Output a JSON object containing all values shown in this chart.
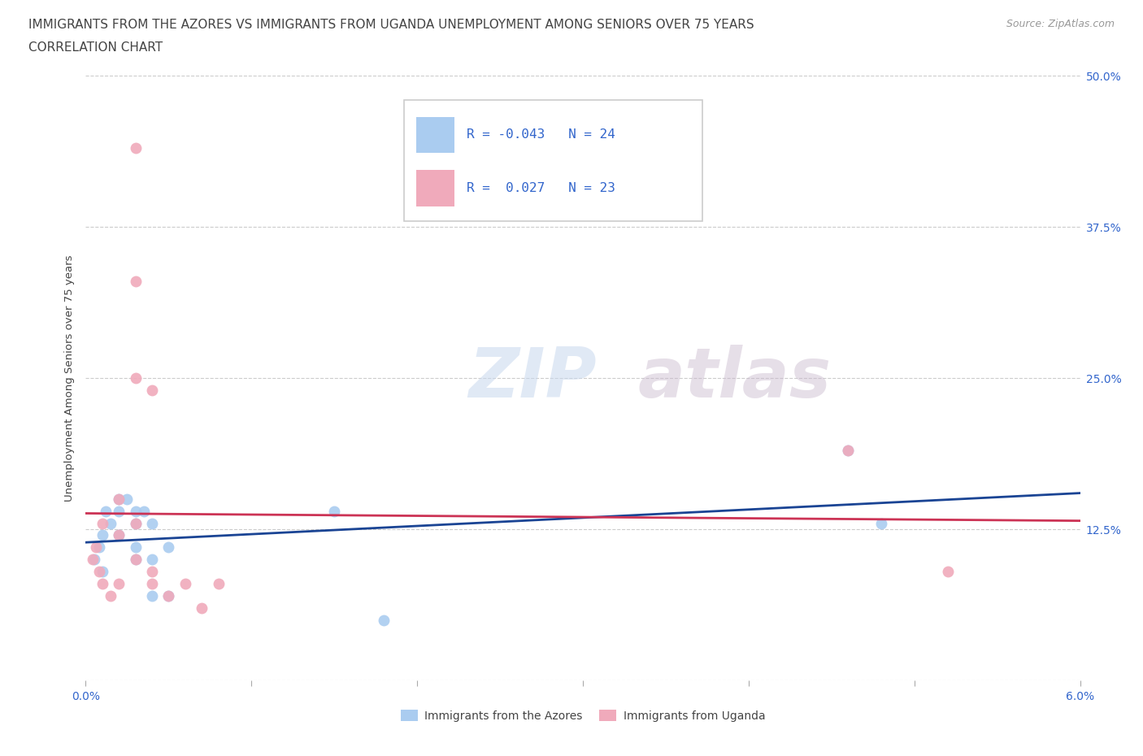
{
  "title_line1": "IMMIGRANTS FROM THE AZORES VS IMMIGRANTS FROM UGANDA UNEMPLOYMENT AMONG SENIORS OVER 75 YEARS",
  "title_line2": "CORRELATION CHART",
  "source_text": "Source: ZipAtlas.com",
  "ylabel": "Unemployment Among Seniors over 75 years",
  "xlim": [
    0.0,
    0.06
  ],
  "ylim": [
    0.0,
    0.5
  ],
  "xticks": [
    0.0,
    0.01,
    0.02,
    0.03,
    0.04,
    0.05,
    0.06
  ],
  "xticklabels": [
    "0.0%",
    "",
    "",
    "",
    "",
    "",
    "6.0%"
  ],
  "yticks": [
    0.0,
    0.125,
    0.25,
    0.375,
    0.5
  ],
  "yticklabels": [
    "",
    "12.5%",
    "25.0%",
    "37.5%",
    "50.0%"
  ],
  "watermark_zip": "ZIP",
  "watermark_atlas": "atlas",
  "legend_r1": "-0.043",
  "legend_n1": "24",
  "legend_r2": "0.027",
  "legend_n2": "23",
  "color_azores": "#aaccf0",
  "color_uganda": "#f0aabb",
  "color_line_azores": "#1a4494",
  "color_line_uganda": "#cc3355",
  "color_title": "#444444",
  "color_axis_tick": "#3366cc",
  "color_legend_text": "#3366cc",
  "color_source": "#999999",
  "color_grid": "#cccccc",
  "azores_x": [
    0.0005,
    0.0008,
    0.001,
    0.001,
    0.0012,
    0.0015,
    0.002,
    0.002,
    0.002,
    0.0025,
    0.003,
    0.003,
    0.003,
    0.003,
    0.0035,
    0.004,
    0.004,
    0.004,
    0.005,
    0.005,
    0.015,
    0.018,
    0.046,
    0.048
  ],
  "azores_y": [
    0.1,
    0.11,
    0.09,
    0.12,
    0.14,
    0.13,
    0.15,
    0.14,
    0.12,
    0.15,
    0.14,
    0.13,
    0.11,
    0.1,
    0.14,
    0.13,
    0.1,
    0.07,
    0.11,
    0.07,
    0.14,
    0.05,
    0.19,
    0.13
  ],
  "uganda_x": [
    0.0004,
    0.0006,
    0.0008,
    0.001,
    0.001,
    0.0015,
    0.002,
    0.002,
    0.002,
    0.003,
    0.003,
    0.003,
    0.003,
    0.003,
    0.004,
    0.004,
    0.004,
    0.005,
    0.006,
    0.007,
    0.008,
    0.046,
    0.052
  ],
  "uganda_y": [
    0.1,
    0.11,
    0.09,
    0.13,
    0.08,
    0.07,
    0.15,
    0.12,
    0.08,
    0.44,
    0.33,
    0.25,
    0.13,
    0.1,
    0.24,
    0.09,
    0.08,
    0.07,
    0.08,
    0.06,
    0.08,
    0.19,
    0.09
  ],
  "marker_size": 100
}
